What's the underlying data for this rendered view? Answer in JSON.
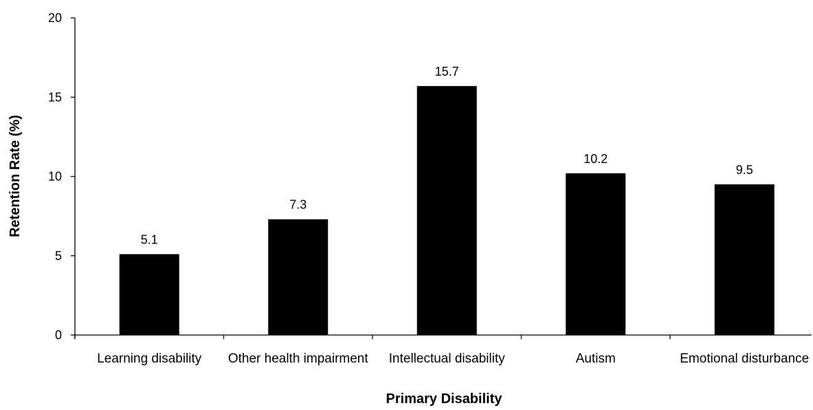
{
  "chart_data": {
    "type": "bar",
    "categories": [
      "Learning disability",
      "Other health impairment",
      "Intellectual disability",
      "Autism",
      "Emotional disturbance"
    ],
    "values": [
      5.1,
      7.3,
      15.7,
      10.2,
      9.5
    ],
    "xlabel": "Primary Disability",
    "ylabel": "Retention Rate (%)",
    "ylim": [
      0,
      20
    ],
    "yticks": [
      0,
      5,
      10,
      15,
      20
    ],
    "grid": false,
    "bar_color": "#000000"
  }
}
